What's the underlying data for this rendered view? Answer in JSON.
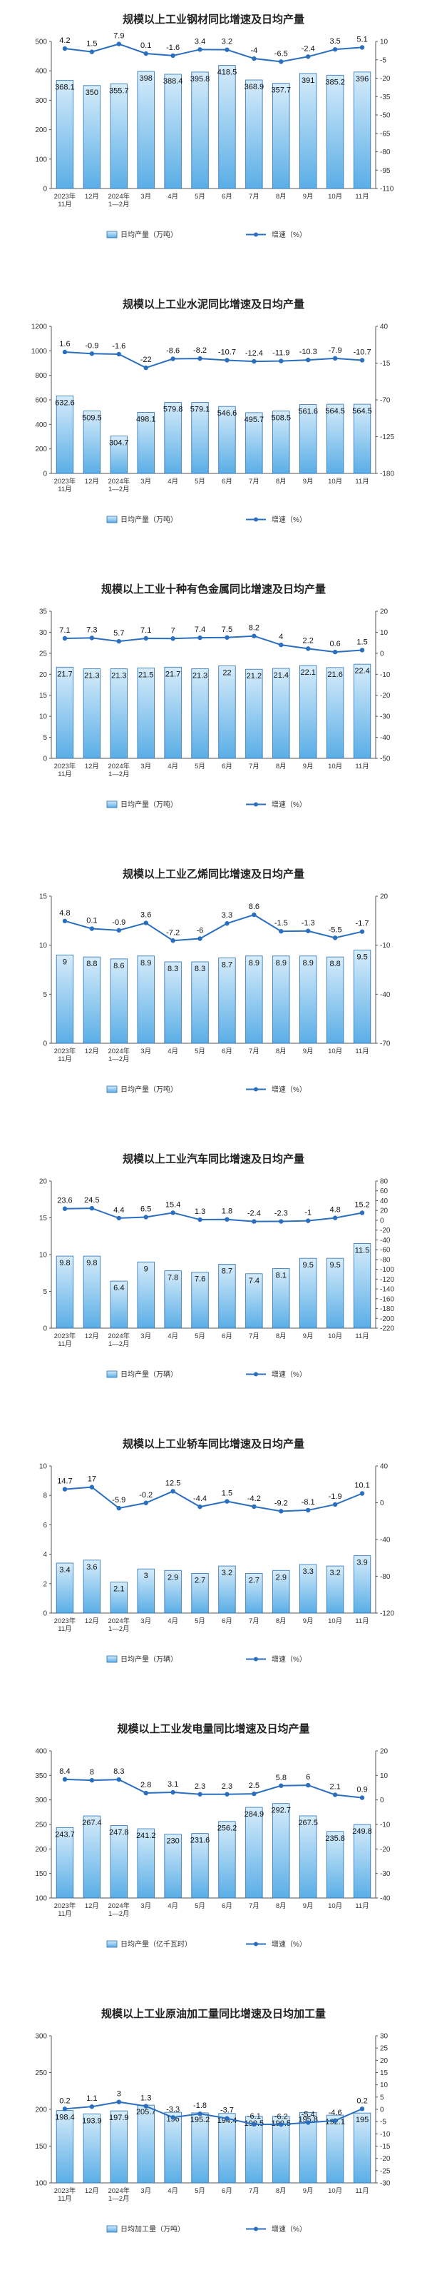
{
  "chart_data": [
    {
      "type": "bar",
      "title": "规模以上工业钢材同比增速及日均产量",
      "categories": [
        "2023年\n11月",
        "12月",
        "2024年\n1—2月",
        "3月",
        "4月",
        "5月",
        "6月",
        "7月",
        "8月",
        "9月",
        "10月",
        "11月"
      ],
      "series": [
        {
          "name": "日均产量（万吨）",
          "type": "bar",
          "axis": "left",
          "values": [
            368.1,
            350.0,
            355.7,
            398.0,
            388.4,
            395.8,
            418.5,
            368.9,
            357.7,
            391.0,
            385.2,
            396.0
          ]
        },
        {
          "name": "增速（%）",
          "type": "line",
          "axis": "right",
          "values": [
            4.2,
            1.5,
            7.9,
            0.1,
            -1.6,
            3.4,
            3.2,
            -4.0,
            -6.5,
            -2.4,
            3.5,
            5.1
          ]
        }
      ],
      "ylim_left": [
        0,
        500
      ],
      "yticks_left": [
        0,
        100,
        200,
        300,
        400,
        500
      ],
      "ylim_right": [
        -110,
        10
      ],
      "yticks_right": [
        10,
        -5,
        -20,
        -35,
        -50,
        -65,
        -80,
        -95,
        -110
      ],
      "legend_position": "bottom"
    },
    {
      "type": "bar",
      "title": "规模以上工业水泥同比增速及日均产量",
      "categories": [
        "2023年\n11月",
        "12月",
        "2024年\n1—2月",
        "3月",
        "4月",
        "5月",
        "6月",
        "7月",
        "8月",
        "9月",
        "10月",
        "11月"
      ],
      "series": [
        {
          "name": "日均产量（万吨）",
          "type": "bar",
          "axis": "left",
          "values": [
            632.6,
            509.5,
            304.7,
            498.1,
            579.8,
            579.1,
            546.6,
            495.7,
            508.5,
            561.6,
            564.5,
            564.5
          ]
        },
        {
          "name": "增速（%）",
          "type": "line",
          "axis": "right",
          "values": [
            1.6,
            -0.9,
            -1.6,
            -22.0,
            -8.6,
            -8.2,
            -10.7,
            -12.4,
            -11.9,
            -10.3,
            -7.9,
            -10.7
          ]
        }
      ],
      "ylim_left": [
        0,
        1200
      ],
      "yticks_left": [
        0,
        200,
        400,
        600,
        800,
        1000,
        1200
      ],
      "ylim_right": [
        -180,
        40
      ],
      "yticks_right": [
        40,
        -15,
        -70,
        -125,
        -180
      ],
      "legend_position": "bottom"
    },
    {
      "type": "bar",
      "title": "规模以上工业十种有色金属同比增速及日均产量",
      "categories": [
        "2023年\n11月",
        "12月",
        "2024年\n1—2月",
        "3月",
        "4月",
        "5月",
        "6月",
        "7月",
        "8月",
        "9月",
        "10月",
        "11月"
      ],
      "series": [
        {
          "name": "日均产量（万吨）",
          "type": "bar",
          "axis": "left",
          "values": [
            21.7,
            21.3,
            21.3,
            21.5,
            21.7,
            21.3,
            22.0,
            21.2,
            21.4,
            22.1,
            21.6,
            22.4
          ]
        },
        {
          "name": "增速（%）",
          "type": "line",
          "axis": "right",
          "values": [
            7.1,
            7.3,
            5.7,
            7.1,
            7.0,
            7.4,
            7.5,
            8.2,
            4.0,
            2.2,
            0.6,
            1.5
          ]
        }
      ],
      "ylim_left": [
        0,
        35
      ],
      "yticks_left": [
        0,
        5,
        10,
        15,
        20,
        25,
        30,
        35
      ],
      "ylim_right": [
        -50,
        20
      ],
      "yticks_right": [
        20,
        10,
        0,
        -10,
        -20,
        -30,
        -40,
        -50
      ],
      "legend_position": "bottom"
    },
    {
      "type": "bar",
      "title": "规模以上工业乙烯同比增速及日均产量",
      "categories": [
        "2023年\n11月",
        "12月",
        "2024年\n1—2月",
        "3月",
        "4月",
        "5月",
        "6月",
        "7月",
        "8月",
        "9月",
        "10月",
        "11月"
      ],
      "series": [
        {
          "name": "日均产量（万吨）",
          "type": "bar",
          "axis": "left",
          "values": [
            9.0,
            8.8,
            8.6,
            8.9,
            8.3,
            8.3,
            8.7,
            8.9,
            8.9,
            8.9,
            8.8,
            9.5
          ]
        },
        {
          "name": "增速（%）",
          "type": "line",
          "axis": "right",
          "values": [
            4.8,
            0.1,
            -0.9,
            3.6,
            -7.2,
            -6.0,
            3.3,
            8.6,
            -1.5,
            -1.3,
            -5.5,
            -1.7
          ]
        }
      ],
      "ylim_left": [
        0,
        15
      ],
      "yticks_left": [
        0,
        5,
        10,
        15
      ],
      "ylim_right": [
        -70,
        20
      ],
      "yticks_right": [
        20,
        -10,
        -40,
        -70
      ],
      "legend_position": "bottom"
    },
    {
      "type": "bar",
      "title": "规模以上工业汽车同比增速及日均产量",
      "categories": [
        "2023年\n11月",
        "12月",
        "2024年\n1—2月",
        "3月",
        "4月",
        "5月",
        "6月",
        "7月",
        "8月",
        "9月",
        "10月",
        "11月"
      ],
      "series": [
        {
          "name": "日均产量（万辆）",
          "type": "bar",
          "axis": "left",
          "values": [
            9.8,
            9.8,
            6.4,
            9.0,
            7.8,
            7.6,
            8.7,
            7.4,
            8.1,
            9.5,
            9.5,
            11.5
          ]
        },
        {
          "name": "增速（%）",
          "type": "line",
          "axis": "right",
          "values": [
            23.6,
            24.5,
            4.4,
            6.5,
            15.4,
            1.3,
            1.8,
            -2.4,
            -2.3,
            -1.0,
            4.8,
            15.2
          ]
        }
      ],
      "ylim_left": [
        0,
        20
      ],
      "yticks_left": [
        0,
        5,
        10,
        15,
        20
      ],
      "ylim_right": [
        -220,
        80
      ],
      "yticks_right": [
        80,
        60,
        40,
        20,
        0,
        -20,
        -40,
        -60,
        -80,
        -100,
        -120,
        -140,
        -160,
        -180,
        -200,
        -220
      ],
      "legend_position": "bottom"
    },
    {
      "type": "bar",
      "title": "规模以上工业轿车同比增速及日均产量",
      "categories": [
        "2023年\n11月",
        "12月",
        "2024年\n1—2月",
        "3月",
        "4月",
        "5月",
        "6月",
        "7月",
        "8月",
        "9月",
        "10月",
        "11月"
      ],
      "series": [
        {
          "name": "日均产量（万辆）",
          "type": "bar",
          "axis": "left",
          "values": [
            3.4,
            3.6,
            2.1,
            3.0,
            2.9,
            2.7,
            3.2,
            2.7,
            2.9,
            3.3,
            3.2,
            3.9
          ]
        },
        {
          "name": "增速（%）",
          "type": "line",
          "axis": "right",
          "values": [
            14.7,
            17.0,
            -5.9,
            -0.2,
            12.5,
            -4.4,
            1.5,
            -4.2,
            -9.2,
            -8.1,
            -1.9,
            10.1
          ]
        }
      ],
      "ylim_left": [
        0,
        10
      ],
      "yticks_left": [
        0,
        2,
        4,
        6,
        8,
        10
      ],
      "ylim_right": [
        -120,
        40
      ],
      "yticks_right": [
        40,
        0,
        -40,
        -80,
        -120
      ],
      "legend_position": "bottom"
    },
    {
      "type": "bar",
      "title": "规模以上工业发电量同比增速及日均产量",
      "categories": [
        "2023年\n11月",
        "12月",
        "2024年\n1—2月",
        "3月",
        "4月",
        "5月",
        "6月",
        "7月",
        "8月",
        "9月",
        "10月",
        "11月"
      ],
      "series": [
        {
          "name": "日均产量（亿千瓦时）",
          "type": "bar",
          "axis": "left",
          "values": [
            243.7,
            267.4,
            247.8,
            241.2,
            230.0,
            231.6,
            256.2,
            284.9,
            292.7,
            267.5,
            235.8,
            249.8
          ]
        },
        {
          "name": "增速（%）",
          "type": "line",
          "axis": "right",
          "values": [
            8.4,
            8.0,
            8.3,
            2.8,
            3.1,
            2.3,
            2.3,
            2.5,
            5.8,
            6.0,
            2.1,
            0.9
          ]
        }
      ],
      "ylim_left": [
        100,
        400
      ],
      "yticks_left": [
        100,
        150,
        200,
        250,
        300,
        350,
        400
      ],
      "ylim_right": [
        -40,
        20
      ],
      "yticks_right": [
        20,
        10,
        0,
        -10,
        -20,
        -30,
        -40
      ],
      "legend_position": "bottom"
    },
    {
      "type": "bar",
      "title": "规模以上工业原油加工量同比增速及日均加工量",
      "categories": [
        "2023年\n11月",
        "12月",
        "2024年\n1—2月",
        "3月",
        "4月",
        "5月",
        "6月",
        "7月",
        "8月",
        "9月",
        "10月",
        "11月"
      ],
      "series": [
        {
          "name": "日均加工量（万吨）",
          "type": "bar",
          "axis": "left",
          "values": [
            198.4,
            193.9,
            197.9,
            205.7,
            196.0,
            195.2,
            194.4,
            190.5,
            190.5,
            195.8,
            192.1,
            195.0
          ]
        },
        {
          "name": "增速（%）",
          "type": "line",
          "axis": "right",
          "values": [
            0.2,
            1.1,
            3.0,
            1.3,
            -3.3,
            -1.8,
            -3.7,
            -6.1,
            -6.2,
            -5.4,
            -4.6,
            0.2
          ]
        }
      ],
      "ylim_left": [
        100,
        300
      ],
      "yticks_left": [
        100,
        150,
        200,
        250,
        300
      ],
      "ylim_right": [
        -30,
        30
      ],
      "yticks_right": [
        30,
        25,
        20,
        15,
        10,
        5,
        0,
        -5,
        -10,
        -15,
        -20,
        -25,
        -30
      ],
      "legend_position": "bottom"
    }
  ],
  "colors": {
    "bar_fill_top": "#d6ecfa",
    "bar_fill_bottom": "#5aaee6",
    "bar_edge": "#2a6fb3",
    "line": "#2a6fbf",
    "axis": "#555555"
  }
}
